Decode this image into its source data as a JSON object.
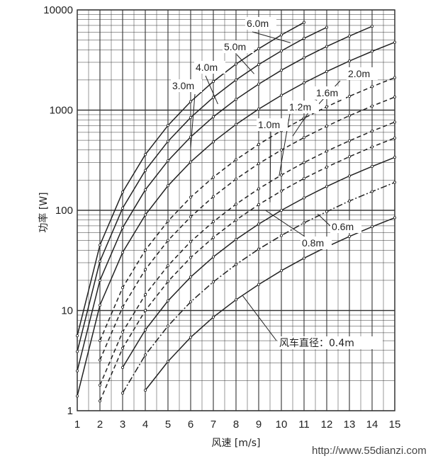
{
  "chart_data": {
    "type": "line",
    "xlabel": "风速 [m/s]",
    "ylabel": "功率 [W]",
    "x_ticks": [
      "1",
      "2",
      "3",
      "4",
      "5",
      "6",
      "7",
      "8",
      "9",
      "10",
      "11",
      "12",
      "13",
      "14",
      "15"
    ],
    "y_ticks": [
      "1",
      "10",
      "100",
      "1000",
      "10000"
    ],
    "xlim": [
      1,
      15
    ],
    "ylim": [
      1,
      10000
    ],
    "y_scale": "log",
    "grid": true,
    "series": [
      {
        "name": "6.0m",
        "style": "solid",
        "x": [
          1,
          2,
          3,
          4,
          5,
          6,
          7,
          8,
          9,
          10,
          11
        ],
        "y": [
          5.6,
          45,
          152,
          360,
          703,
          1215,
          1930,
          2880,
          4100,
          5625,
          7500
        ]
      },
      {
        "name": "5.0m",
        "style": "solid",
        "x": [
          1,
          2,
          3,
          4,
          5,
          6,
          7,
          8,
          9,
          10,
          11,
          12
        ],
        "y": [
          3.9,
          31,
          105,
          250,
          488,
          843,
          1340,
          2000,
          2850,
          3900,
          5200,
          6700
        ]
      },
      {
        "name": "4.0m",
        "style": "solid",
        "x": [
          1,
          2,
          3,
          4,
          5,
          6,
          7,
          8,
          9,
          10,
          11,
          12,
          13,
          14
        ],
        "y": [
          2.5,
          20,
          67,
          160,
          312,
          540,
          857,
          1280,
          1820,
          2500,
          3330,
          4320,
          5490,
          6860
        ]
      },
      {
        "name": "3.0m",
        "style": "solid",
        "x": [
          1,
          2,
          3,
          4,
          5,
          6,
          7,
          8,
          9,
          10,
          11,
          12,
          13,
          14,
          15
        ],
        "y": [
          1.4,
          11.3,
          38,
          90,
          176,
          304,
          482,
          720,
          1025,
          1406,
          1870,
          2430,
          3090,
          3860,
          4750
        ]
      },
      {
        "name": "2.0m",
        "style": "dashed",
        "x": [
          2,
          3,
          4,
          5,
          6,
          7,
          8,
          9,
          10,
          11,
          12,
          13,
          14,
          15
        ],
        "y": [
          5,
          16.9,
          40,
          78,
          135,
          214,
          320,
          455,
          625,
          832,
          1080,
          1373,
          1715,
          2110
        ]
      },
      {
        "name": "1.6m",
        "style": "dashed",
        "x": [
          2,
          3,
          4,
          5,
          6,
          7,
          8,
          9,
          10,
          11,
          12,
          13,
          14,
          15
        ],
        "y": [
          3.2,
          10.8,
          25.6,
          50,
          86,
          137,
          205,
          292,
          400,
          532,
          691,
          879,
          1098,
          1350
        ]
      },
      {
        "name": "1.2m",
        "style": "dashed",
        "x": [
          2,
          3,
          4,
          5,
          6,
          7,
          8,
          9,
          10,
          11,
          12,
          13,
          14,
          15
        ],
        "y": [
          1.8,
          6.1,
          14.4,
          28,
          48.6,
          77,
          115,
          164,
          225,
          300,
          389,
          494,
          617,
          759
        ]
      },
      {
        "name": "1.0m",
        "style": "dashed",
        "x": [
          2,
          3,
          4,
          5,
          6,
          7,
          8,
          9,
          10,
          11,
          12,
          13,
          14,
          15
        ],
        "y": [
          1.25,
          4.2,
          10,
          19.5,
          33.8,
          53.6,
          80,
          114,
          156,
          208,
          270,
          343,
          429,
          527
        ]
      },
      {
        "name": "0.8m",
        "style": "solid",
        "x": [
          3,
          4,
          5,
          6,
          7,
          8,
          9,
          10,
          11,
          12,
          13,
          14,
          15
        ],
        "y": [
          2.7,
          6.4,
          12.5,
          21.6,
          34.3,
          51.2,
          72.9,
          100,
          133,
          173,
          220,
          274,
          338
        ]
      },
      {
        "name": "0.6m",
        "style": "dashdot",
        "x": [
          3,
          4,
          5,
          6,
          7,
          8,
          9,
          10,
          11,
          12,
          13,
          14,
          15
        ],
        "y": [
          1.5,
          3.6,
          7,
          12.2,
          19.3,
          28.8,
          41,
          56,
          75,
          97,
          124,
          154,
          190
        ]
      },
      {
        "name": "风车直径：0.4m",
        "style": "solid",
        "x": [
          4,
          5,
          6,
          7,
          8,
          9,
          10,
          11,
          12,
          13,
          14,
          15
        ],
        "y": [
          1.6,
          3.1,
          5.4,
          8.6,
          12.8,
          18.2,
          25,
          33.3,
          43.2,
          54.9,
          68.6,
          84.4
        ]
      }
    ]
  },
  "watermark": "http://www.55dianzi.com"
}
